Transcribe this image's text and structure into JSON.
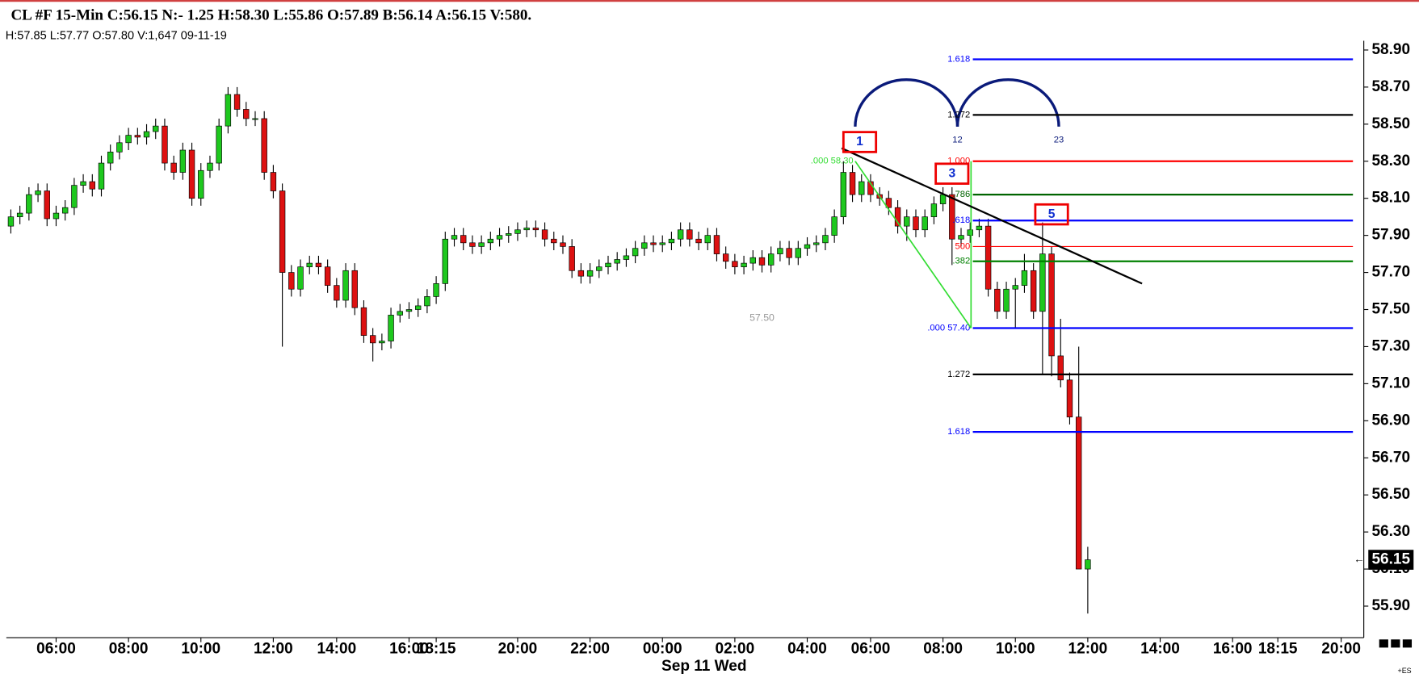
{
  "chart_data": {
    "type": "candlestick",
    "title": "CL #F 15-Min C:56.15 N:- 1.25 H:58.30 L:55.86 O:57.89 B:56.14 A:56.15 V:580.",
    "subtitle": "H:57.85  L:57.77  O:57.80  V:1,647  09-11-19",
    "date_label": "Sep 11 Wed",
    "corner_label": "+ES",
    "price_note": "57.50",
    "last_price": 56.15,
    "up_color": "#1ec81e",
    "down_color": "#dd1111",
    "xlim": [
      -0.5,
      149.5
    ],
    "xticks": [
      {
        "value": 5,
        "label": "06:00"
      },
      {
        "value": 13,
        "label": "08:00"
      },
      {
        "value": 21,
        "label": "10:00"
      },
      {
        "value": 29,
        "label": "12:00"
      },
      {
        "value": 36,
        "label": "14:00"
      },
      {
        "value": 44,
        "label": "16:00"
      },
      {
        "value": 47,
        "label": "18:15"
      },
      {
        "value": 56,
        "label": "20:00"
      },
      {
        "value": 64,
        "label": "22:00"
      },
      {
        "value": 72,
        "label": "00:00"
      },
      {
        "value": 80,
        "label": "02:00"
      },
      {
        "value": 88,
        "label": "04:00"
      },
      {
        "value": 95,
        "label": "06:00"
      },
      {
        "value": 103,
        "label": "08:00"
      },
      {
        "value": 111,
        "label": "10:00"
      },
      {
        "value": 119,
        "label": "12:00"
      },
      {
        "value": 127,
        "label": "14:00"
      },
      {
        "value": 135,
        "label": "16:00"
      },
      {
        "value": 140,
        "label": "18:15"
      },
      {
        "value": 147,
        "label": "20:00"
      }
    ],
    "ylim": [
      55.73,
      58.95
    ],
    "yticks": [
      {
        "value": 55.9,
        "label": "55.90"
      },
      {
        "value": 56.1,
        "label": "56.10"
      },
      {
        "value": 56.3,
        "label": "56.30"
      },
      {
        "value": 56.5,
        "label": "56.50"
      },
      {
        "value": 56.7,
        "label": "56.70"
      },
      {
        "value": 56.9,
        "label": "56.90"
      },
      {
        "value": 57.1,
        "label": "57.10"
      },
      {
        "value": 57.3,
        "label": "57.30"
      },
      {
        "value": 57.5,
        "label": "57.50"
      },
      {
        "value": 57.7,
        "label": "57.70"
      },
      {
        "value": 57.9,
        "label": "57.90"
      },
      {
        "value": 58.1,
        "label": "58.10"
      },
      {
        "value": 58.3,
        "label": "58.30"
      },
      {
        "value": 58.5,
        "label": "58.50"
      },
      {
        "value": 58.7,
        "label": "58.70"
      },
      {
        "value": 58.9,
        "label": "58.90"
      }
    ],
    "open": [
      57.95,
      58.0,
      58.02,
      58.12,
      58.14,
      57.99,
      58.02,
      58.05,
      58.17,
      58.19,
      58.15,
      58.29,
      58.35,
      58.4,
      58.44,
      58.43,
      58.46,
      58.49,
      58.29,
      58.24,
      58.36,
      58.1,
      58.25,
      58.29,
      58.49,
      58.66,
      58.58,
      58.53,
      58.53,
      58.24,
      58.14,
      57.7,
      57.61,
      57.73,
      57.75,
      57.73,
      57.63,
      57.55,
      57.71,
      57.51,
      57.36,
      57.32,
      57.33,
      57.47,
      57.49,
      57.5,
      57.52,
      57.57,
      57.64,
      57.88,
      57.9,
      57.86,
      57.84,
      57.86,
      57.88,
      57.9,
      57.91,
      57.93,
      57.94,
      57.93,
      57.88,
      57.86,
      57.84,
      57.71,
      57.68,
      57.71,
      57.73,
      57.75,
      57.77,
      57.79,
      57.83,
      57.86,
      57.85,
      57.86,
      57.88,
      57.93,
      57.88,
      57.86,
      57.9,
      57.8,
      57.76,
      57.73,
      57.75,
      57.78,
      57.74,
      57.8,
      57.83,
      57.78,
      57.83,
      57.85,
      57.86,
      57.9,
      58.0,
      58.24,
      58.12,
      58.19,
      58.12,
      58.1,
      58.05,
      57.95,
      58.0,
      57.93,
      58.0,
      58.07,
      58.12,
      57.88,
      57.9,
      57.93,
      57.95,
      57.61,
      57.49,
      57.61,
      57.63,
      57.71,
      57.49,
      57.8,
      57.25,
      57.12,
      56.92,
      56.1
    ],
    "high": [
      58.04,
      58.06,
      58.16,
      58.18,
      58.18,
      58.06,
      58.09,
      58.21,
      58.23,
      58.23,
      58.33,
      58.39,
      58.44,
      58.48,
      58.48,
      58.5,
      58.53,
      58.53,
      58.33,
      58.4,
      58.4,
      58.29,
      58.33,
      58.53,
      58.7,
      58.7,
      58.62,
      58.57,
      58.57,
      58.28,
      58.18,
      57.74,
      57.77,
      57.79,
      57.79,
      57.77,
      57.67,
      57.75,
      57.75,
      57.55,
      57.4,
      57.37,
      57.51,
      57.53,
      57.54,
      57.56,
      57.61,
      57.68,
      57.92,
      57.94,
      57.94,
      57.9,
      57.9,
      57.92,
      57.94,
      57.95,
      57.97,
      57.98,
      57.98,
      57.97,
      57.92,
      57.9,
      57.88,
      57.75,
      57.75,
      57.77,
      57.79,
      57.81,
      57.83,
      57.87,
      57.9,
      57.9,
      57.9,
      57.92,
      57.97,
      57.97,
      57.92,
      57.94,
      57.94,
      57.84,
      57.8,
      57.79,
      57.82,
      57.82,
      57.84,
      57.87,
      57.87,
      57.87,
      57.89,
      57.9,
      57.94,
      58.04,
      58.3,
      58.28,
      58.23,
      58.23,
      58.16,
      58.14,
      58.09,
      58.04,
      58.04,
      58.04,
      58.11,
      58.16,
      58.16,
      57.94,
      57.97,
      57.99,
      57.99,
      57.65,
      57.65,
      57.67,
      57.8,
      57.75,
      57.97,
      57.84,
      57.45,
      57.16,
      57.3,
      56.22
    ],
    "low": [
      57.91,
      57.96,
      57.98,
      58.08,
      57.95,
      57.95,
      57.98,
      58.01,
      58.13,
      58.11,
      58.11,
      58.25,
      58.31,
      58.36,
      58.39,
      58.39,
      58.42,
      58.25,
      58.2,
      58.2,
      58.06,
      58.06,
      58.21,
      58.25,
      58.45,
      58.54,
      58.49,
      58.49,
      58.2,
      58.1,
      57.3,
      57.57,
      57.57,
      57.69,
      57.69,
      57.59,
      57.51,
      57.51,
      57.47,
      57.32,
      57.22,
      57.28,
      57.29,
      57.43,
      57.45,
      57.46,
      57.48,
      57.53,
      57.6,
      57.84,
      57.82,
      57.8,
      57.8,
      57.82,
      57.84,
      57.86,
      57.87,
      57.89,
      57.89,
      57.84,
      57.82,
      57.8,
      57.67,
      57.64,
      57.64,
      57.67,
      57.69,
      57.71,
      57.73,
      57.75,
      57.79,
      57.81,
      57.81,
      57.82,
      57.84,
      57.84,
      57.82,
      57.82,
      57.76,
      57.72,
      57.69,
      57.69,
      57.71,
      57.7,
      57.7,
      57.76,
      57.74,
      57.74,
      57.79,
      57.81,
      57.82,
      57.86,
      57.96,
      58.08,
      58.08,
      58.08,
      58.06,
      58.01,
      57.91,
      57.87,
      57.89,
      57.89,
      57.96,
      58.03,
      57.74,
      57.84,
      57.86,
      57.89,
      57.57,
      57.45,
      57.45,
      57.4,
      57.59,
      57.45,
      57.15,
      57.14,
      57.08,
      56.88,
      56.1,
      55.86
    ],
    "close": [
      58.0,
      58.02,
      58.12,
      58.14,
      57.99,
      58.02,
      58.05,
      58.17,
      58.19,
      58.15,
      58.29,
      58.35,
      58.4,
      58.44,
      58.43,
      58.46,
      58.49,
      58.29,
      58.24,
      58.36,
      58.1,
      58.25,
      58.29,
      58.49,
      58.66,
      58.58,
      58.53,
      58.53,
      58.24,
      58.14,
      57.7,
      57.61,
      57.73,
      57.75,
      57.73,
      57.63,
      57.55,
      57.71,
      57.51,
      57.36,
      57.32,
      57.33,
      57.47,
      57.49,
      57.5,
      57.52,
      57.57,
      57.64,
      57.88,
      57.9,
      57.86,
      57.84,
      57.86,
      57.88,
      57.9,
      57.91,
      57.93,
      57.94,
      57.93,
      57.88,
      57.86,
      57.84,
      57.71,
      57.68,
      57.71,
      57.73,
      57.75,
      57.77,
      57.79,
      57.83,
      57.86,
      57.85,
      57.86,
      57.88,
      57.93,
      57.88,
      57.86,
      57.9,
      57.8,
      57.76,
      57.73,
      57.75,
      57.78,
      57.74,
      57.8,
      57.83,
      57.78,
      57.83,
      57.85,
      57.86,
      57.9,
      58.0,
      58.24,
      58.12,
      58.19,
      58.12,
      58.1,
      58.05,
      57.95,
      58.0,
      57.93,
      58.0,
      58.07,
      58.12,
      57.88,
      57.9,
      57.93,
      57.95,
      57.61,
      57.49,
      57.61,
      57.63,
      57.71,
      57.49,
      57.8,
      57.25,
      57.12,
      56.92,
      56.1,
      56.15
    ],
    "fib_levels": [
      {
        "label": "1.618",
        "value": 58.85,
        "color": "#0000ff"
      },
      {
        "label": "1.272",
        "value": 58.55,
        "color": "#000000"
      },
      {
        "label": "1.000",
        "value": 58.3,
        "color": "#ff0000"
      },
      {
        "label": ".786",
        "value": 58.12,
        "color": "#006400"
      },
      {
        "label": ".618",
        "value": 57.98,
        "color": "#0000ff"
      },
      {
        "label": "500",
        "value": 57.84,
        "color": "#ff0000"
      },
      {
        "label": ".382",
        "value": 57.76,
        "color": "#008000"
      },
      {
        "label": ".000 57.40",
        "value": 57.4,
        "color": "#0000ff"
      },
      {
        "label": "1.272",
        "value": 57.15,
        "color": "#000000"
      },
      {
        "label": "1.618",
        "value": 56.84,
        "color": "#0000ff"
      }
    ],
    "swing": {
      "label": ".000 58.30",
      "x": [
        93.3,
        106.1
      ],
      "y": [
        58.3,
        57.4
      ],
      "color": "#33dd33"
    },
    "trendline": {
      "x": [
        91.8,
        125
      ],
      "y": [
        58.37,
        57.64
      ],
      "color": "#000000"
    },
    "wave_labels": [
      "1",
      "3",
      "5"
    ],
    "cycle_labels": [
      "12",
      "23"
    ]
  }
}
